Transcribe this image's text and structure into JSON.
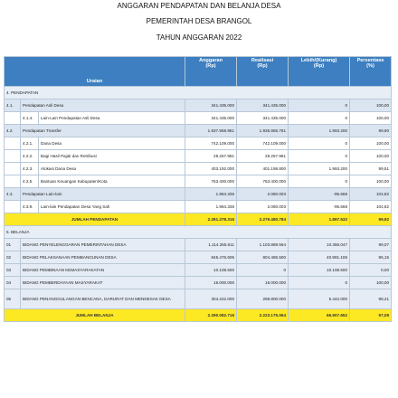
{
  "title": {
    "line1": "ANGGARAN PENDAPATAN DAN BELANJA DESA",
    "line2": "PEMERINTAH DESA BRANGOL",
    "line3": "TAHUN ANGGARAN 2022"
  },
  "table": {
    "headers": {
      "uraian": "Uraian",
      "anggaran": "Anggaran\n(Rp)",
      "realisasi": "Realisasi\n(Rp)",
      "lebih": "Lebih/(Kurang)\n(Rp)",
      "persentase": "Persentase\n(%)"
    },
    "pendapatan_label": "4. PENDAPATAN",
    "r1": {
      "code": "4.1.",
      "name": "Pendapatan Asli Desa",
      "anggaran": "341.435.000",
      "realisasi": "341.435.000",
      "lebih": "0",
      "persen": "100,00"
    },
    "r2": {
      "code": "4.1.4.",
      "name": "Lain-Lain Pendapatan Asli Desa",
      "anggaran": "341.435.000",
      "realisasi": "341.435.000",
      "lebih": "0",
      "persen": "100,00"
    },
    "r3": {
      "code": "4.2.",
      "name": "Pendapatan Transfer",
      "anggaran": "1.937.958.981",
      "realisasi": "1.935.965.781",
      "lebih": "1.993.200",
      "persen": "99,90"
    },
    "r4": {
      "code": "4.2.1.",
      "name": "Dana Desa",
      "anggaran": "742.109.000",
      "realisasi": "742.109.000",
      "lebih": "0",
      "persen": "100,00"
    },
    "r5": {
      "code": "4.2.2.",
      "name": "Bagi Hasil Pajak dan Retribusi",
      "anggaran": "29.257.981",
      "realisasi": "29.257.981",
      "lebih": "0",
      "persen": "100,00"
    },
    "r6": {
      "code": "4.2.3.",
      "name": "Alokasi Dana Desa",
      "anggaran": "403.192.000",
      "realisasi": "401.198.800",
      "lebih": "1.993.200",
      "persen": "99,51"
    },
    "r7": {
      "code": "4.2.5.",
      "name": "Bantuan Keuangan Kabupaten/Kota",
      "anggaran": "763.400.000",
      "realisasi": "763.400.000",
      "lebih": "0",
      "persen": "100,00"
    },
    "r8": {
      "code": "4.3.",
      "name": "Pendapatan Lain-lain",
      "anggaran": "1.984.335",
      "realisasi": "2.080.003",
      "lebih": "-95.668",
      "persen": "104,82"
    },
    "r9": {
      "code": "4.3.9.",
      "name": "Lain-lain Pendapatan Desa Yang Sah",
      "anggaran": "1.984.335",
      "realisasi": "2.080.003",
      "lebih": "-95.668",
      "persen": "104,82"
    },
    "jp": {
      "name": "JUMLAH PENDAPATAN",
      "anggaran": "2.281.378.316",
      "realisasi": "2.279.480.784",
      "lebih": "1.897.532",
      "persen": "99,92"
    },
    "belanja_label": "5. BELANJA",
    "b1": {
      "code": "01",
      "name": "BIDANG PENYELENGGARAN PEMERINTAHAN DESA",
      "anggaran": "1.114.255.611",
      "realisasi": "1.103.889.564",
      "lebih": "10.366.047",
      "persen": "99,07"
    },
    "b2": {
      "code": "02",
      "name": "BIDANG PELAKSANAAN PEMBANGUNAN DESA",
      "anggaran": "845.476.605",
      "realisasi": "804.485.500",
      "lebih": "40.991.105",
      "persen": "95,15"
    },
    "b3": {
      "code": "03",
      "name": "BIDANG PEMBINAAN KEMASYARAKATAN",
      "anggaran": "10.108.500",
      "realisasi": "0",
      "lebih": "10.108.500",
      "persen": "0,00"
    },
    "b4": {
      "code": "04",
      "name": "BIDANG PEMBERDAYAAN MASYARAKAT",
      "anggaran": "16.000.000",
      "realisasi": "16.000.000",
      "lebih": "0",
      "persen": "100,00"
    },
    "b5": {
      "code": "05",
      "name": "BIDANG PENANGGULANGAN BENCANA, DARURAT DAN MENDESAK DESA",
      "anggaran": "304.242.000",
      "realisasi": "298.800.000",
      "lebih": "5.442.000",
      "persen": "98,21"
    },
    "jb": {
      "name": "JUMLAH BELANJA",
      "anggaran": "2.290.082.716",
      "realisasi": "2.223.175.064",
      "lebih": "66.907.652",
      "persen": "97,08"
    }
  },
  "colors": {
    "header_bg": "#3d7fc0",
    "total_bg": "#fde824"
  }
}
